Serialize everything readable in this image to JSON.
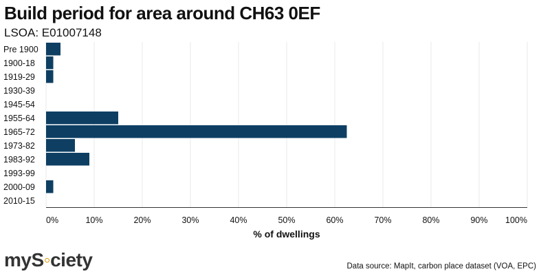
{
  "title": "Build period for area around CH63 0EF",
  "subtitle": "LSOA: E01007148",
  "chart_data": {
    "type": "bar",
    "orientation": "horizontal",
    "categories": [
      "Pre 1900",
      "1900-18",
      "1919-29",
      "1930-39",
      "1945-54",
      "1955-64",
      "1965-72",
      "1973-82",
      "1983-92",
      "1993-99",
      "2000-09",
      "2010-15"
    ],
    "values": [
      3,
      1.5,
      1.5,
      0,
      0,
      15,
      62.5,
      6,
      9,
      0,
      1.5,
      0
    ],
    "xlabel": "% of dwellings",
    "xlim": [
      0,
      100
    ],
    "xticks": [
      "0%",
      "10%",
      "20%",
      "30%",
      "40%",
      "50%",
      "60%",
      "70%",
      "80%",
      "90%",
      "100%"
    ],
    "grid": true,
    "bar_color": "#0e3f63"
  },
  "logo": {
    "prefix": "my",
    "s": "S",
    "dots": "◦",
    "suffix": "ciety"
  },
  "source": "Data source: MapIt, carbon place dataset (VOA, EPC)"
}
